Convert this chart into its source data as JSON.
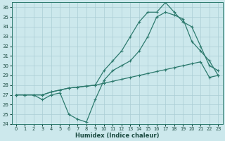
{
  "xlabel": "Humidex (Indice chaleur)",
  "ylabel": "",
  "background_color": "#cce8ec",
  "grid_color": "#aacdd4",
  "line_color": "#2d7a6e",
  "xlim": [
    -0.5,
    23.5
  ],
  "ylim": [
    24,
    36.5
  ],
  "x_ticks": [
    0,
    1,
    2,
    3,
    4,
    5,
    6,
    7,
    8,
    9,
    10,
    11,
    12,
    13,
    14,
    15,
    16,
    17,
    18,
    19,
    20,
    21,
    22,
    23
  ],
  "y_ticks": [
    24,
    25,
    26,
    27,
    28,
    29,
    30,
    31,
    32,
    33,
    34,
    35,
    36
  ],
  "line1_x": [
    0,
    1,
    2,
    3,
    4,
    5,
    6,
    7,
    8,
    9,
    10,
    11,
    12,
    13,
    14,
    15,
    16,
    17,
    18,
    19,
    20,
    21,
    22,
    23
  ],
  "line1_y": [
    27.0,
    27.0,
    27.0,
    27.0,
    27.3,
    27.5,
    27.7,
    27.8,
    27.9,
    28.0,
    28.2,
    28.4,
    28.6,
    28.8,
    29.0,
    29.2,
    29.4,
    29.6,
    29.8,
    30.0,
    30.2,
    30.4,
    28.8,
    29.0
  ],
  "line2_x": [
    0,
    1,
    2,
    3,
    4,
    5,
    6,
    7,
    8,
    9,
    10,
    11,
    12,
    13,
    14,
    15,
    16,
    17,
    18,
    19,
    20,
    21,
    22,
    23
  ],
  "line2_y": [
    27.0,
    27.0,
    27.0,
    26.5,
    27.0,
    27.2,
    25.0,
    24.5,
    24.2,
    26.5,
    28.5,
    29.5,
    30.0,
    30.5,
    31.5,
    33.0,
    35.0,
    35.5,
    35.2,
    34.8,
    32.5,
    31.5,
    30.5,
    29.0
  ],
  "line3_x": [
    0,
    1,
    2,
    3,
    4,
    5,
    6,
    7,
    8,
    9,
    10,
    11,
    12,
    13,
    14,
    15,
    16,
    17,
    18,
    19,
    20,
    21,
    22,
    23
  ],
  "line3_y": [
    27.0,
    27.0,
    27.0,
    27.0,
    27.3,
    27.5,
    27.7,
    27.8,
    27.9,
    28.0,
    29.5,
    30.5,
    31.5,
    33.0,
    34.5,
    35.5,
    35.5,
    36.5,
    35.5,
    34.5,
    34.0,
    32.0,
    30.0,
    29.5
  ],
  "marker": "+",
  "markersize": 3.5,
  "linewidth": 0.9
}
